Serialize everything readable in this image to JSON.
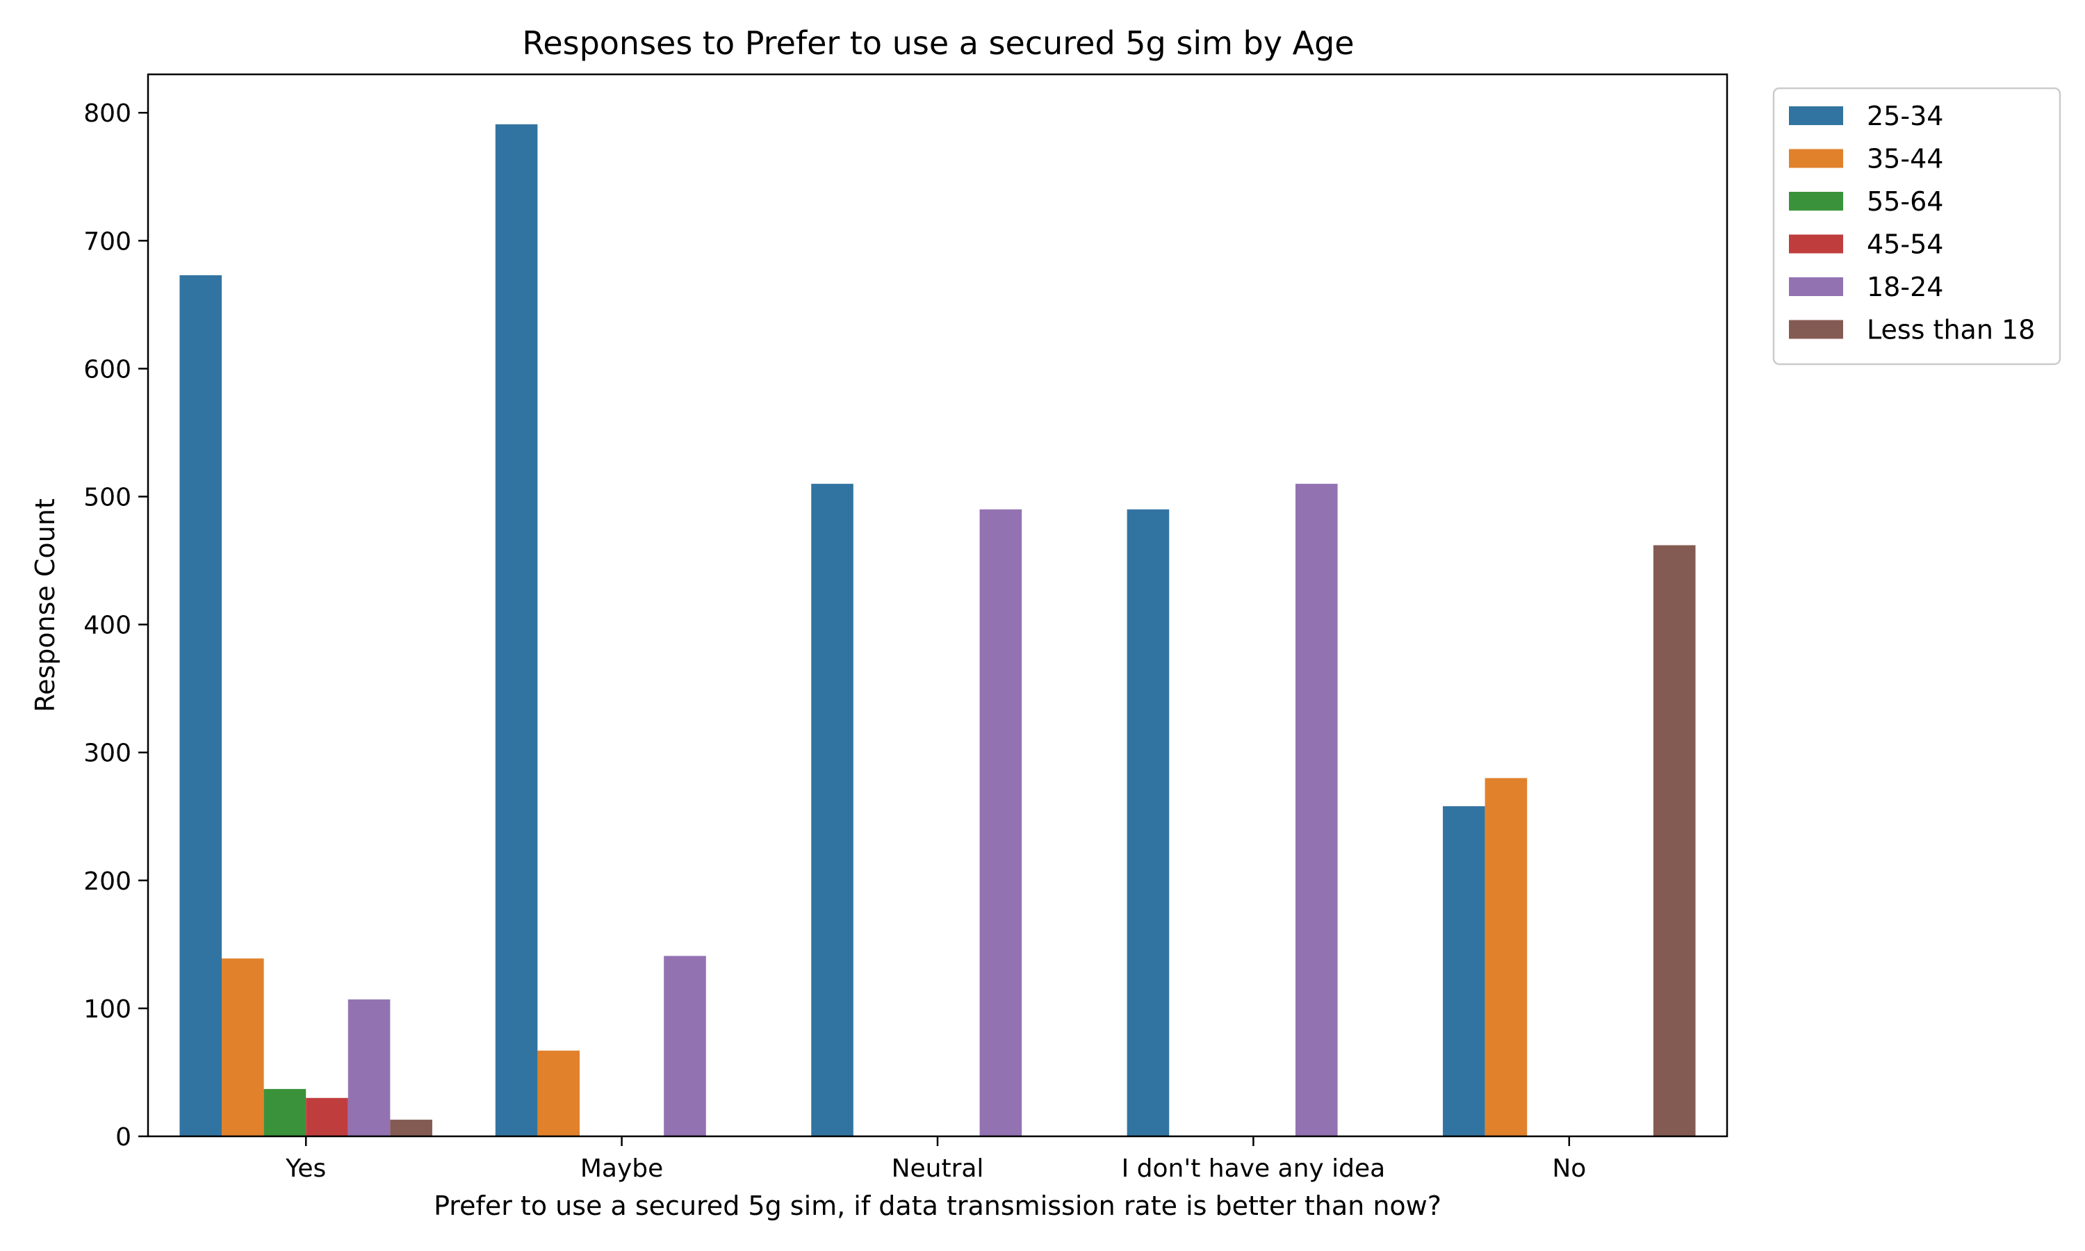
{
  "chart_data": {
    "type": "bar",
    "title": "Responses to Prefer to use a secured 5g sim by Age",
    "xlabel": "Prefer to use a secured 5g sim, if data transmission rate is better than now?",
    "ylabel": "Response Count",
    "ylim": [
      0,
      830
    ],
    "yticks": [
      0,
      100,
      200,
      300,
      400,
      500,
      600,
      700,
      800
    ],
    "categories": [
      "Yes",
      "Maybe",
      "Neutral",
      "I don't have any idea",
      "No"
    ],
    "series": [
      {
        "name": "25-34",
        "color": "#3274a1",
        "values": [
          673,
          791,
          510,
          490,
          258
        ]
      },
      {
        "name": "35-44",
        "color": "#e1812c",
        "values": [
          139,
          67,
          0,
          0,
          280
        ]
      },
      {
        "name": "55-64",
        "color": "#3a923a",
        "values": [
          37,
          0,
          0,
          0,
          0
        ]
      },
      {
        "name": "45-54",
        "color": "#c03d3e",
        "values": [
          30,
          0,
          0,
          0,
          0
        ]
      },
      {
        "name": "18-24",
        "color": "#9372b2",
        "values": [
          107,
          141,
          490,
          510,
          0
        ]
      },
      {
        "name": "Less than 18",
        "color": "#845b53",
        "values": [
          13,
          0,
          0,
          0,
          462
        ]
      }
    ],
    "legend_position": "upper-right-outside",
    "grid": false
  }
}
